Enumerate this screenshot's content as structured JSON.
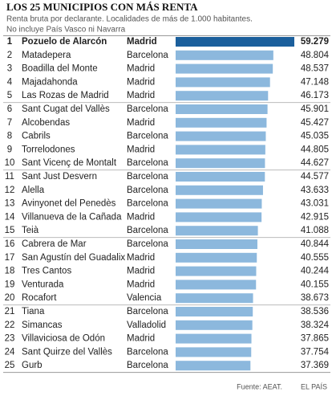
{
  "chart_data": {
    "type": "bar",
    "title": "LOS 25 MUNICIPIOS CON MÁS RENTA",
    "subtitle": [
      "Renta bruta por declarante. Localidades de más de 1.000 habitantes.",
      "No incluye País Vasco ni Navarra"
    ],
    "ranks": [
      1,
      2,
      3,
      4,
      5,
      6,
      7,
      8,
      9,
      10,
      11,
      12,
      13,
      14,
      15,
      16,
      17,
      18,
      19,
      20,
      21,
      22,
      23,
      24,
      25
    ],
    "categories": [
      "Pozuelo de Alarcón",
      "Matadepera",
      "Boadilla del Monte",
      "Majadahonda",
      "Las Rozas de Madrid",
      "Sant Cugat del Vallès",
      "Alcobendas",
      "Cabrils",
      "Torrelodones",
      "Sant Vicenç de Montalt",
      "Sant Just Desvern",
      "Alella",
      "Avinyonet del Penedès",
      "Villanueva de la Cañada",
      "Teià",
      "Cabrera de Mar",
      "San Agustín del Guadalix",
      "Tres Cantos",
      "Venturada",
      "Rocafort",
      "Tiana",
      "Simancas",
      "Villaviciosa de Odón",
      "Sant Quirze del Vallès",
      "Gurb"
    ],
    "provinces": [
      "Madrid",
      "Barcelona",
      "Madrid",
      "Madrid",
      "Madrid",
      "Barcelona",
      "Madrid",
      "Barcelona",
      "Madrid",
      "Barcelona",
      "Barcelona",
      "Barcelona",
      "Barcelona",
      "Madrid",
      "Barcelona",
      "Barcelona",
      "Madrid",
      "Madrid",
      "Madrid",
      "Valencia",
      "Barcelona",
      "Valladolid",
      "Madrid",
      "Barcelona",
      "Barcelona"
    ],
    "values": [
      59279,
      48804,
      48537,
      47148,
      46173,
      45901,
      45427,
      45035,
      44805,
      44627,
      44577,
      43633,
      43031,
      42915,
      41088,
      40844,
      40555,
      40244,
      40155,
      38673,
      38536,
      38324,
      37865,
      37754,
      37369
    ],
    "value_labels": [
      "59.279",
      "48.804",
      "48.537",
      "47.148",
      "46.173",
      "45.901",
      "45.427",
      "45.035",
      "44.805",
      "44.627",
      "44.577",
      "43.633",
      "43.031",
      "42.915",
      "41.088",
      "40.844",
      "40.555",
      "40.244",
      "40.155",
      "38.673",
      "38.536",
      "38.324",
      "37.865",
      "37.754",
      "37.369"
    ],
    "colors": [
      "#1b5f9c",
      "#8cb8dd",
      "#8cb8dd",
      "#8cb8dd",
      "#8cb8dd",
      "#8cb8dd",
      "#8cb8dd",
      "#8cb8dd",
      "#8cb8dd",
      "#8cb8dd",
      "#8cb8dd",
      "#8cb8dd",
      "#8cb8dd",
      "#8cb8dd",
      "#8cb8dd",
      "#8cb8dd",
      "#8cb8dd",
      "#8cb8dd",
      "#8cb8dd",
      "#8cb8dd",
      "#8cb8dd",
      "#8cb8dd",
      "#8cb8dd",
      "#8cb8dd",
      "#8cb8dd"
    ],
    "source": "Fuente: AEAT.",
    "publisher": "EL PAÍS"
  }
}
